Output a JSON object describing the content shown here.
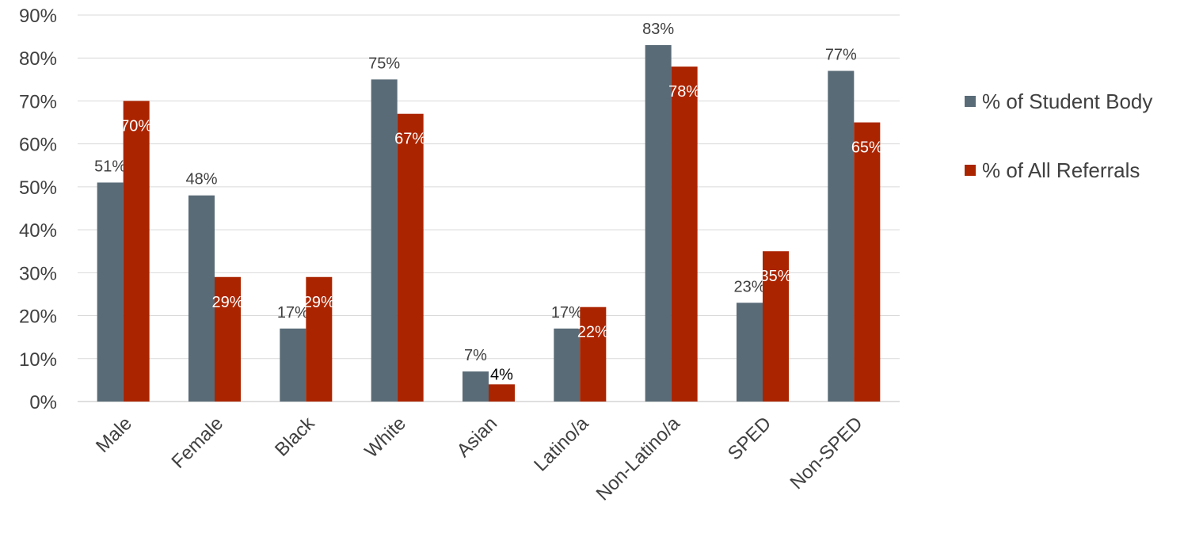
{
  "chart_data": {
    "type": "bar",
    "title": "",
    "xlabel": "",
    "ylabel": "",
    "categories": [
      "Male",
      "Female",
      "Black",
      "White",
      "Asian",
      "Latino/a",
      "Non-Latino/a",
      "SPED",
      "Non-SPED"
    ],
    "series": [
      {
        "name": "% of Student Body",
        "color": "#596b77",
        "values": [
          51,
          48,
          17,
          75,
          7,
          17,
          83,
          23,
          77
        ],
        "labels": [
          "51%",
          "48%",
          "17%",
          "75%",
          "7%",
          "17%",
          "83%",
          "23%",
          "77%"
        ]
      },
      {
        "name": "% of All Referrals",
        "color": "#ab2400",
        "values": [
          70,
          29,
          29,
          67,
          4,
          22,
          78,
          35,
          65
        ],
        "labels": [
          "70%",
          "29%",
          "29%",
          "67%",
          "4%",
          "22%",
          "78%",
          "35%",
          "65%"
        ]
      }
    ],
    "y_ticks": [
      "0%",
      "10%",
      "20%",
      "30%",
      "40%",
      "50%",
      "60%",
      "70%",
      "80%",
      "90%"
    ],
    "ylim": [
      0,
      90
    ],
    "grid": true,
    "legend_position": "right"
  }
}
